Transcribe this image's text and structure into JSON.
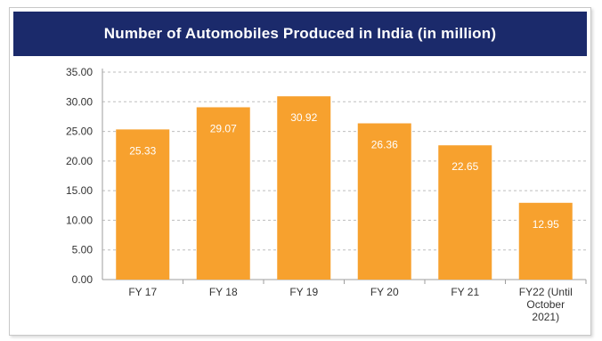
{
  "chart_data": {
    "type": "bar",
    "title": "Number of Automobiles Produced in India (in million)",
    "categories": [
      "FY 17",
      "FY 18",
      "FY 19",
      "FY 20",
      "FY 21",
      "FY22 (Until October 2021)"
    ],
    "category_lines": [
      [
        "FY 17"
      ],
      [
        "FY 18"
      ],
      [
        "FY 19"
      ],
      [
        "FY 20"
      ],
      [
        "FY 21"
      ],
      [
        "FY22 (Until",
        "October",
        "2021)"
      ]
    ],
    "values": [
      25.33,
      29.07,
      30.92,
      26.36,
      22.65,
      12.95
    ],
    "data_labels": [
      "25.33",
      "29.07",
      "30.92",
      "26.36",
      "22.65",
      "12.95"
    ],
    "y_ticks": [
      "0.00",
      "5.00",
      "10.00",
      "15.00",
      "20.00",
      "25.00",
      "30.00",
      "35.00"
    ],
    "ylim": [
      0,
      35
    ],
    "grid": true,
    "bar_color": "#f7a12e",
    "title_bg": "#1b2a6b"
  }
}
